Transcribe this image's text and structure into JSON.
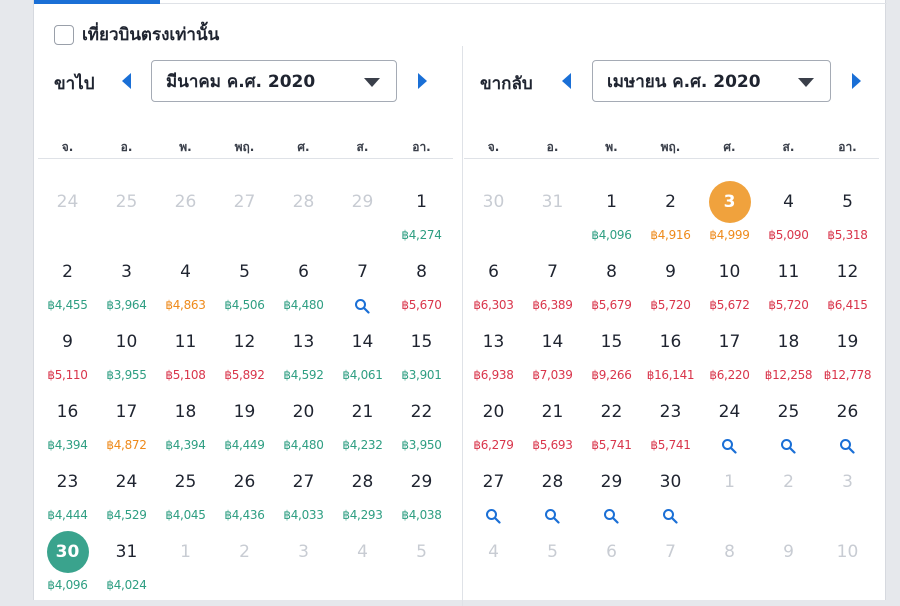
{
  "filter": {
    "direct_only_label": "เที่ยวบินตรงเท่านั้น"
  },
  "colors": {
    "accent": "#1a6fd6",
    "green": "#2e9e82",
    "red": "#d9354b",
    "orange": "#ee8a1b"
  },
  "weekdays": [
    "จ.",
    "อ.",
    "พ.",
    "พฤ.",
    "ศ.",
    "ส.",
    "อา."
  ],
  "outbound": {
    "label": "ขาไป",
    "month_select": "มีนาคม ค.ศ. 2020",
    "weeks": [
      [
        {
          "d": "24",
          "m": true
        },
        {
          "d": "25",
          "m": true
        },
        {
          "d": "26",
          "m": true
        },
        {
          "d": "27",
          "m": true
        },
        {
          "d": "28",
          "m": true
        },
        {
          "d": "29",
          "m": true
        },
        {
          "d": "1",
          "p": "฿4,274",
          "c": "green"
        }
      ],
      [
        {
          "d": "2",
          "p": "฿4,455",
          "c": "green"
        },
        {
          "d": "3",
          "p": "฿3,964",
          "c": "green"
        },
        {
          "d": "4",
          "p": "฿4,863",
          "c": "orange"
        },
        {
          "d": "5",
          "p": "฿4,506",
          "c": "green"
        },
        {
          "d": "6",
          "p": "฿4,480",
          "c": "green"
        },
        {
          "d": "7",
          "s": true
        },
        {
          "d": "8",
          "p": "฿5,670",
          "c": "red"
        }
      ],
      [
        {
          "d": "9",
          "p": "฿5,110",
          "c": "red"
        },
        {
          "d": "10",
          "p": "฿3,955",
          "c": "green"
        },
        {
          "d": "11",
          "p": "฿5,108",
          "c": "red"
        },
        {
          "d": "12",
          "p": "฿5,892",
          "c": "red"
        },
        {
          "d": "13",
          "p": "฿4,592",
          "c": "green"
        },
        {
          "d": "14",
          "p": "฿4,061",
          "c": "green"
        },
        {
          "d": "15",
          "p": "฿3,901",
          "c": "green"
        }
      ],
      [
        {
          "d": "16",
          "p": "฿4,394",
          "c": "green"
        },
        {
          "d": "17",
          "p": "฿4,872",
          "c": "orange"
        },
        {
          "d": "18",
          "p": "฿4,394",
          "c": "green"
        },
        {
          "d": "19",
          "p": "฿4,449",
          "c": "green"
        },
        {
          "d": "20",
          "p": "฿4,480",
          "c": "green"
        },
        {
          "d": "21",
          "p": "฿4,232",
          "c": "green"
        },
        {
          "d": "22",
          "p": "฿3,950",
          "c": "green"
        }
      ],
      [
        {
          "d": "23",
          "p": "฿4,444",
          "c": "green"
        },
        {
          "d": "24",
          "p": "฿4,529",
          "c": "green"
        },
        {
          "d": "25",
          "p": "฿4,045",
          "c": "green"
        },
        {
          "d": "26",
          "p": "฿4,436",
          "c": "green"
        },
        {
          "d": "27",
          "p": "฿4,033",
          "c": "green"
        },
        {
          "d": "28",
          "p": "฿4,293",
          "c": "green"
        },
        {
          "d": "29",
          "p": "฿4,038",
          "c": "green"
        }
      ],
      [
        {
          "d": "30",
          "p": "฿4,096",
          "c": "green",
          "sel": "green"
        },
        {
          "d": "31",
          "p": "฿4,024",
          "c": "green"
        },
        {
          "d": "1",
          "m": true
        },
        {
          "d": "2",
          "m": true
        },
        {
          "d": "3",
          "m": true
        },
        {
          "d": "4",
          "m": true
        },
        {
          "d": "5",
          "m": true
        }
      ]
    ]
  },
  "return": {
    "label": "ขากลับ",
    "month_select": "เมษายน ค.ศ. 2020",
    "weeks": [
      [
        {
          "d": "30",
          "m": true
        },
        {
          "d": "31",
          "m": true
        },
        {
          "d": "1",
          "p": "฿4,096",
          "c": "green"
        },
        {
          "d": "2",
          "p": "฿4,916",
          "c": "orange"
        },
        {
          "d": "3",
          "p": "฿4,999",
          "c": "orange",
          "sel": "orange"
        },
        {
          "d": "4",
          "p": "฿5,090",
          "c": "red"
        },
        {
          "d": "5",
          "p": "฿5,318",
          "c": "red"
        }
      ],
      [
        {
          "d": "6",
          "p": "฿6,303",
          "c": "red"
        },
        {
          "d": "7",
          "p": "฿6,389",
          "c": "red"
        },
        {
          "d": "8",
          "p": "฿5,679",
          "c": "red"
        },
        {
          "d": "9",
          "p": "฿5,720",
          "c": "red"
        },
        {
          "d": "10",
          "p": "฿5,672",
          "c": "red"
        },
        {
          "d": "11",
          "p": "฿5,720",
          "c": "red"
        },
        {
          "d": "12",
          "p": "฿6,415",
          "c": "red"
        }
      ],
      [
        {
          "d": "13",
          "p": "฿6,938",
          "c": "red"
        },
        {
          "d": "14",
          "p": "฿7,039",
          "c": "red"
        },
        {
          "d": "15",
          "p": "฿9,266",
          "c": "red"
        },
        {
          "d": "16",
          "p": "฿16,141",
          "c": "red"
        },
        {
          "d": "17",
          "p": "฿6,220",
          "c": "red"
        },
        {
          "d": "18",
          "p": "฿12,258",
          "c": "red"
        },
        {
          "d": "19",
          "p": "฿12,778",
          "c": "red"
        }
      ],
      [
        {
          "d": "20",
          "p": "฿6,279",
          "c": "red"
        },
        {
          "d": "21",
          "p": "฿5,693",
          "c": "red"
        },
        {
          "d": "22",
          "p": "฿5,741",
          "c": "red"
        },
        {
          "d": "23",
          "p": "฿5,741",
          "c": "red"
        },
        {
          "d": "24",
          "s": true
        },
        {
          "d": "25",
          "s": true
        },
        {
          "d": "26",
          "s": true
        }
      ],
      [
        {
          "d": "27",
          "s": true
        },
        {
          "d": "28",
          "s": true
        },
        {
          "d": "29",
          "s": true
        },
        {
          "d": "30",
          "s": true
        },
        {
          "d": "1",
          "m": true
        },
        {
          "d": "2",
          "m": true
        },
        {
          "d": "3",
          "m": true
        }
      ],
      [
        {
          "d": "4",
          "m": true
        },
        {
          "d": "5",
          "m": true
        },
        {
          "d": "6",
          "m": true
        },
        {
          "d": "7",
          "m": true
        },
        {
          "d": "8",
          "m": true
        },
        {
          "d": "9",
          "m": true
        },
        {
          "d": "10",
          "m": true
        }
      ]
    ]
  }
}
